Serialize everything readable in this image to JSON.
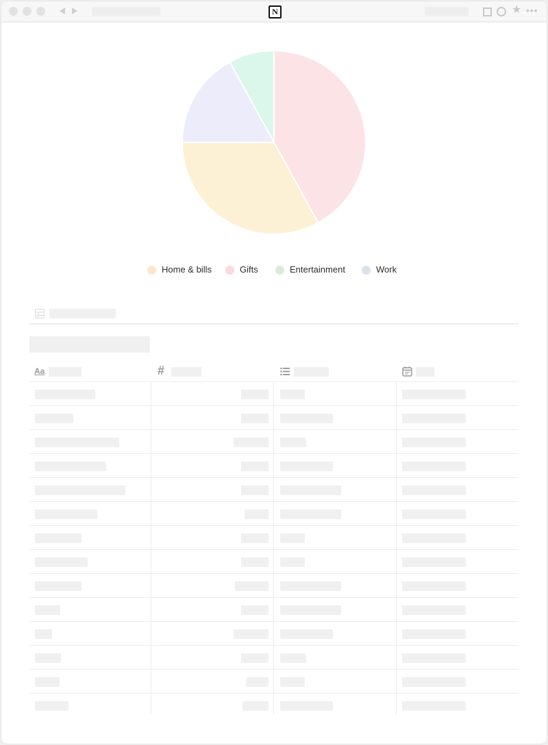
{
  "window": {
    "toolbar_icons": [
      "back-arrow-icon",
      "forward-arrow-icon",
      "notion-logo-icon",
      "square-icon",
      "circle-icon",
      "star-icon",
      "more-icon"
    ],
    "logo_text": "N"
  },
  "chart_data": {
    "type": "pie",
    "title": "",
    "slices": [
      {
        "label": "Gifts",
        "value": 42,
        "color": "#fbe3e6"
      },
      {
        "label": "Home & bills",
        "value": 33,
        "color": "#fcf1d5"
      },
      {
        "label": "Work",
        "value": 17,
        "color": "#ececfb"
      },
      {
        "label": "Entertainment",
        "value": 8,
        "color": "#dbf6ea"
      }
    ],
    "legend": {
      "placement": "bottom",
      "items": [
        {
          "label": "Home & bills",
          "color": "#fbe8cc"
        },
        {
          "label": "Gifts",
          "color": "#fbdadd"
        },
        {
          "label": "Entertainment",
          "color": "#d9edd6"
        },
        {
          "label": "Work",
          "color": "#d9e3ee"
        }
      ]
    }
  },
  "table": {
    "columns": [
      {
        "type": "title",
        "icon": "title-aa-icon",
        "icon_text": "Aa"
      },
      {
        "type": "number",
        "icon": "number-hash-icon",
        "icon_text": "#"
      },
      {
        "type": "select",
        "icon": "list-icon"
      },
      {
        "type": "date",
        "icon": "calendar-icon"
      }
    ],
    "row_count": 14
  },
  "colors": {
    "placeholder": "#f0f0f0",
    "gridline": "#ececec",
    "legend_text": "#2c2c2c"
  }
}
